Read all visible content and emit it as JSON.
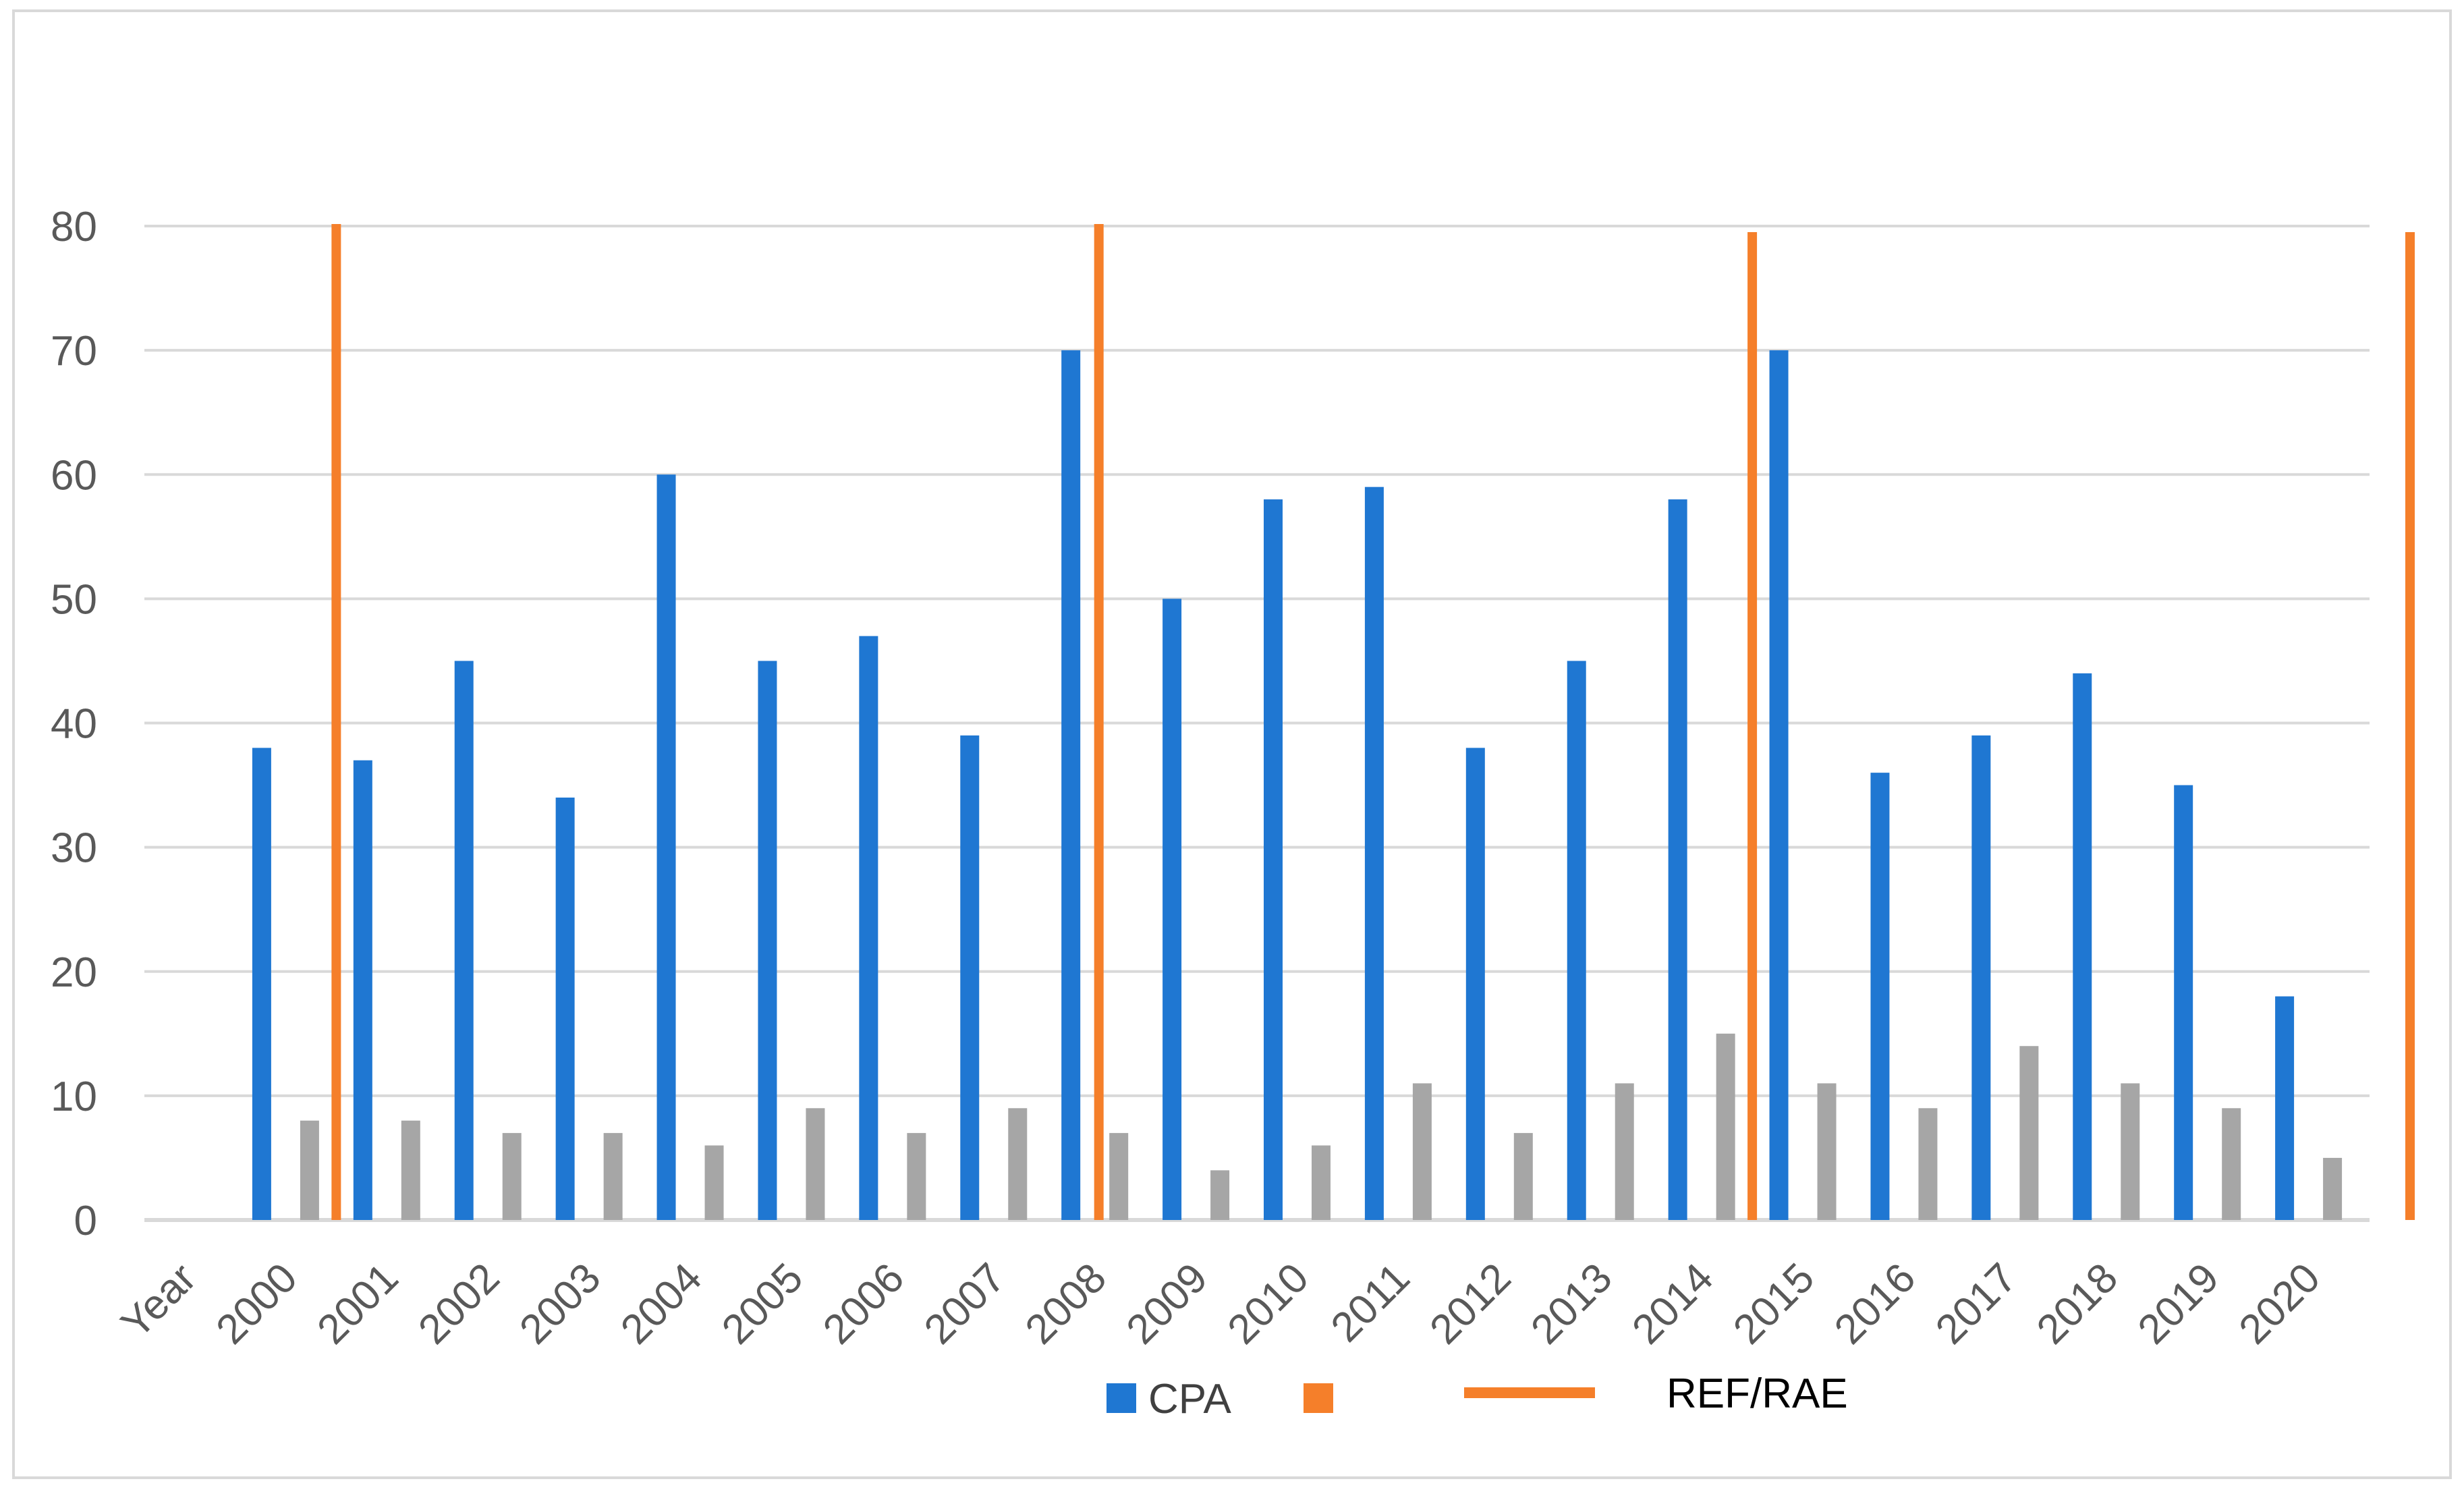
{
  "chart_data": {
    "type": "bar",
    "categories": [
      "Year",
      "2000",
      "2001",
      "2002",
      "2003",
      "2004",
      "2005",
      "2006",
      "2007",
      "2008",
      "2009",
      "2010",
      "2011",
      "2012",
      "2013",
      "2014",
      "2015",
      "2016",
      "2017",
      "2018",
      "2019",
      "2020"
    ],
    "series": [
      {
        "name": "CPA",
        "color": "#1f77d2",
        "values": [
          null,
          38,
          37,
          45,
          34,
          60,
          45,
          47,
          39,
          70,
          50,
          58,
          59,
          38,
          45,
          58,
          70,
          36,
          39,
          44,
          35,
          18
        ]
      },
      {
        "name": "",
        "color": "#a6a6a6",
        "values": [
          null,
          8,
          8,
          7,
          7,
          6,
          9,
          7,
          9,
          7,
          4,
          6,
          11,
          7,
          11,
          15,
          11,
          9,
          14,
          11,
          9,
          5
        ]
      }
    ],
    "ref_lines": {
      "name": "REF/RAE",
      "color": "#f57f2a",
      "positions": [
        "2000|2001",
        "2008",
        "2014|2015",
        "2020|end"
      ]
    },
    "legend": [
      {
        "label": "CPA",
        "color": "#1f77d2",
        "kind": "square"
      },
      {
        "label": "",
        "color": "#f57f2a",
        "kind": "square"
      },
      {
        "label": "REF/RAE",
        "color": "#f57f2a",
        "kind": "line"
      }
    ],
    "ylim": [
      0,
      80
    ],
    "yticks": [
      "0",
      "10",
      "20",
      "30",
      "40",
      "50",
      "60",
      "70",
      "80"
    ],
    "grid": true,
    "legend_position": "bottom",
    "title": "",
    "xlabel": "",
    "ylabel": ""
  }
}
